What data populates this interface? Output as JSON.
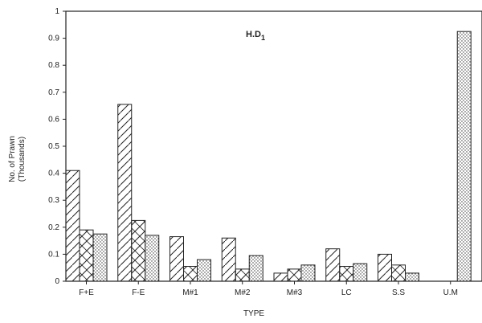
{
  "chart_data": {
    "type": "bar",
    "annotation": "H.D",
    "annotation_subscript": "1",
    "xlabel": "TYPE",
    "ylabel": "No. of Prawn",
    "ylabel_unit": "(Thousands)",
    "ylim": [
      0,
      1
    ],
    "yticks": [
      {
        "value": 0,
        "label": "0"
      },
      {
        "value": 0.1,
        "label": "0.1"
      },
      {
        "value": 0.2,
        "label": "0.2"
      },
      {
        "value": 0.3,
        "label": "0.3"
      },
      {
        "value": 0.4,
        "label": "0.4"
      },
      {
        "value": 0.5,
        "label": "0.5"
      },
      {
        "value": 0.6,
        "label": "0.6"
      },
      {
        "value": 0.7,
        "label": "0.7"
      },
      {
        "value": 0.8,
        "label": "0.8"
      },
      {
        "value": 0.9,
        "label": "0.9"
      },
      {
        "value": 1,
        "label": "1"
      }
    ],
    "categories": [
      "F+E",
      "F-E",
      "M#1",
      "M#2",
      "M#3",
      "LC",
      "S.S",
      "U.M"
    ],
    "series": [
      {
        "pattern": "diag-wide",
        "values": [
          0.41,
          0.655,
          0.165,
          0.16,
          0.03,
          0.12,
          0.1,
          0
        ]
      },
      {
        "pattern": "cross",
        "values": [
          0.19,
          0.225,
          0.055,
          0.045,
          0.045,
          0.055,
          0.06,
          0
        ]
      },
      {
        "pattern": "dots",
        "values": [
          0.175,
          0.17,
          0.08,
          0.095,
          0.06,
          0.065,
          0.03,
          0.925
        ]
      }
    ],
    "grid": false
  }
}
